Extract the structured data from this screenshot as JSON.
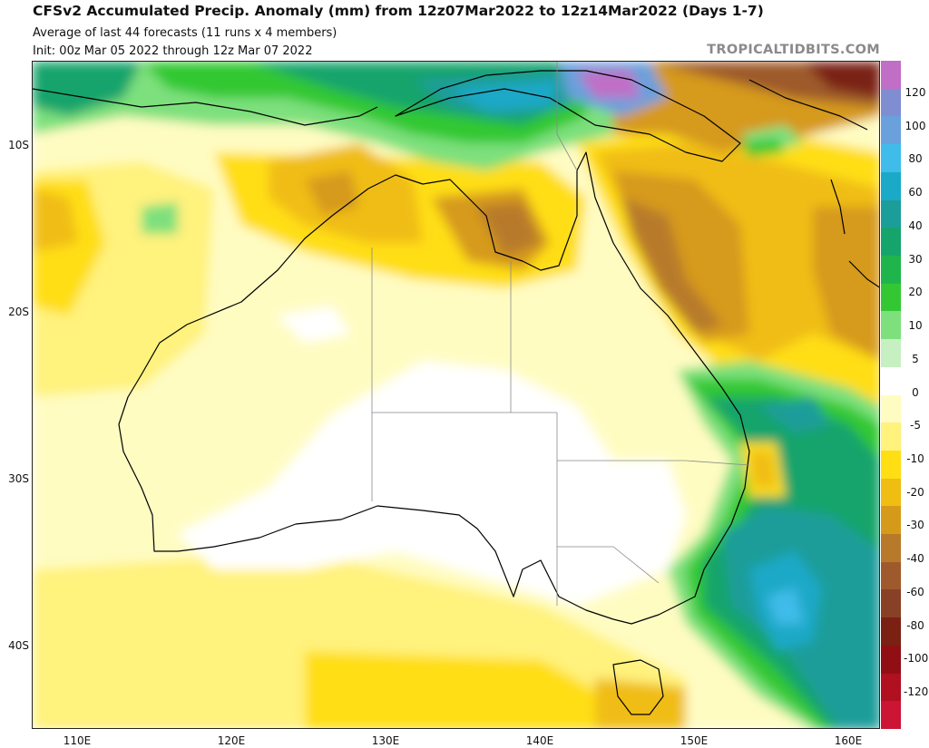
{
  "header": {
    "title": "CFSv2 Accumulated Precip. Anomaly (mm) from 12z07Mar2022 to 12z14Mar2022 (Days 1-7)",
    "subtitle": "Average of last 44 forecasts (11 runs x 4 members)",
    "init": "Init: 00z Mar 05 2022 through 12z Mar 07 2022",
    "watermark": "TROPICALTIDBITS.COM"
  },
  "map": {
    "region": "Australia",
    "field": "7-day accumulated precipitation anomaly",
    "units": "mm",
    "lon_range": [
      107,
      162
    ],
    "lat_range": [
      -45,
      -5
    ],
    "lat_labels": [
      "10S",
      "20S",
      "30S",
      "40S"
    ],
    "lon_labels": [
      "110E",
      "120E",
      "130E",
      "140E",
      "150E",
      "160E"
    ],
    "features": {
      "wet_anomaly_east_coast": "New South Wales coast and Tasman Sea (+20 to +60 mm)",
      "wet_anomaly_north": "New Guinea, Gulf of Carpentaria northern waters (+10 to +120 mm)",
      "dry_anomaly_northeast": "Queensland coast and Coral Sea (-10 to -40 mm)",
      "dry_anomaly_north": "Top End, Gulf region, Kimberley (-10 to -30 mm)"
    }
  },
  "colorbar": {
    "labels": [
      "120",
      "100",
      "80",
      "60",
      "40",
      "30",
      "20",
      "10",
      "5",
      "0",
      "-5",
      "-10",
      "-20",
      "-30",
      "-40",
      "-60",
      "-80",
      "-100",
      "-120"
    ],
    "colors": [
      "#c16ec6",
      "#7f8ed1",
      "#6aa0dc",
      "#3fbcea",
      "#1aa9c7",
      "#1b9d9a",
      "#15a46c",
      "#1fb44c",
      "#33c833",
      "#7de07d",
      "#c6f0c2",
      "#ffffff",
      "#fffcc2",
      "#fff27d",
      "#ffde14",
      "#f0bd12",
      "#d69a1b",
      "#b77a2a",
      "#9e5a2c",
      "#884126",
      "#7a2114",
      "#8f0f14",
      "#b0101f",
      "#cc1435"
    ]
  }
}
